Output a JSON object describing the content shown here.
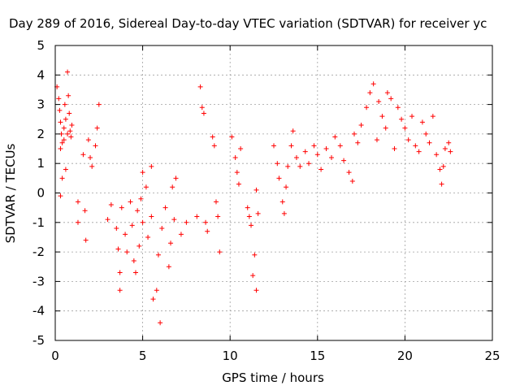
{
  "chart_data": {
    "type": "scatter",
    "title": "Day 289 of 2016, Sidereal Day-to-day VTEC variation (SDTVAR) for receiver yc",
    "xlabel": "GPS time / hours",
    "ylabel": "SDTVAR / TECUs",
    "xlim": [
      0,
      25
    ],
    "ylim": [
      -5,
      5
    ],
    "xticks": [
      "0",
      "5",
      "10",
      "15",
      "20",
      "25"
    ],
    "yticks": [
      "-5",
      "-4",
      "-3",
      "-2",
      "-1",
      "0",
      "1",
      "2",
      "3",
      "4",
      "5"
    ],
    "grid": true,
    "legend": "none",
    "marker": "+",
    "color": "#ff0000",
    "series": [
      {
        "name": "",
        "points": [
          [
            0.1,
            3.6
          ],
          [
            0.2,
            3.2
          ],
          [
            0.25,
            2.8
          ],
          [
            0.3,
            2.4
          ],
          [
            0.35,
            2.0
          ],
          [
            0.4,
            1.7
          ],
          [
            0.5,
            2.2
          ],
          [
            0.55,
            3.0
          ],
          [
            0.6,
            2.5
          ],
          [
            0.7,
            2.0
          ],
          [
            0.75,
            3.3
          ],
          [
            0.8,
            2.7
          ],
          [
            0.85,
            2.1
          ],
          [
            0.9,
            1.9
          ],
          [
            0.95,
            2.3
          ],
          [
            0.3,
            1.5
          ],
          [
            0.5,
            1.8
          ],
          [
            0.7,
            4.1
          ],
          [
            0.4,
            0.5
          ],
          [
            0.3,
            -0.1
          ],
          [
            0.6,
            0.8
          ],
          [
            1.3,
            -0.3
          ],
          [
            1.3,
            -1.0
          ],
          [
            1.6,
            1.3
          ],
          [
            1.7,
            -0.6
          ],
          [
            1.75,
            -1.6
          ],
          [
            1.9,
            1.8
          ],
          [
            2.0,
            1.2
          ],
          [
            2.1,
            0.9
          ],
          [
            2.3,
            1.6
          ],
          [
            2.5,
            3.0
          ],
          [
            2.4,
            2.2
          ],
          [
            3.0,
            -0.9
          ],
          [
            3.2,
            -0.4
          ],
          [
            3.5,
            -1.2
          ],
          [
            3.6,
            -1.9
          ],
          [
            3.7,
            -2.7
          ],
          [
            3.7,
            -3.3
          ],
          [
            3.8,
            -0.5
          ],
          [
            4.0,
            -1.4
          ],
          [
            4.1,
            -2.0
          ],
          [
            4.3,
            -0.3
          ],
          [
            4.4,
            -1.1
          ],
          [
            4.5,
            -2.3
          ],
          [
            4.6,
            -2.7
          ],
          [
            4.7,
            -0.6
          ],
          [
            4.8,
            -1.8
          ],
          [
            4.9,
            -0.2
          ],
          [
            5.0,
            -1.0
          ],
          [
            5.0,
            0.7
          ],
          [
            5.2,
            0.2
          ],
          [
            5.3,
            -1.5
          ],
          [
            5.5,
            0.9
          ],
          [
            5.5,
            -0.8
          ],
          [
            5.6,
            -3.6
          ],
          [
            5.8,
            -3.3
          ],
          [
            5.9,
            -2.1
          ],
          [
            6.0,
            -4.4
          ],
          [
            6.1,
            -1.2
          ],
          [
            6.3,
            -0.5
          ],
          [
            6.5,
            -2.5
          ],
          [
            6.6,
            -1.7
          ],
          [
            6.7,
            0.2
          ],
          [
            6.8,
            -0.9
          ],
          [
            6.9,
            0.5
          ],
          [
            7.2,
            -1.4
          ],
          [
            7.5,
            -1.0
          ],
          [
            8.1,
            -0.8
          ],
          [
            8.3,
            3.6
          ],
          [
            8.4,
            2.9
          ],
          [
            8.5,
            2.7
          ],
          [
            8.6,
            -1.0
          ],
          [
            8.7,
            -1.3
          ],
          [
            9.0,
            1.9
          ],
          [
            9.1,
            1.6
          ],
          [
            9.2,
            -0.3
          ],
          [
            9.3,
            -0.8
          ],
          [
            9.4,
            -2.0
          ],
          [
            10.1,
            1.9
          ],
          [
            10.3,
            1.2
          ],
          [
            10.4,
            0.7
          ],
          [
            10.5,
            0.3
          ],
          [
            10.6,
            1.5
          ],
          [
            11.0,
            -0.5
          ],
          [
            11.1,
            -0.8
          ],
          [
            11.2,
            -1.1
          ],
          [
            11.3,
            -2.8
          ],
          [
            11.4,
            -2.1
          ],
          [
            11.5,
            -3.3
          ],
          [
            11.5,
            0.1
          ],
          [
            11.6,
            -0.7
          ],
          [
            12.5,
            1.6
          ],
          [
            12.7,
            1.0
          ],
          [
            12.8,
            0.5
          ],
          [
            13.0,
            -0.3
          ],
          [
            13.1,
            -0.7
          ],
          [
            13.2,
            0.2
          ],
          [
            13.3,
            0.9
          ],
          [
            13.5,
            1.6
          ],
          [
            13.6,
            2.1
          ],
          [
            13.8,
            1.2
          ],
          [
            14.0,
            0.9
          ],
          [
            14.3,
            1.4
          ],
          [
            14.5,
            1.0
          ],
          [
            14.8,
            1.6
          ],
          [
            15.0,
            1.3
          ],
          [
            15.2,
            0.8
          ],
          [
            15.5,
            1.5
          ],
          [
            15.8,
            1.2
          ],
          [
            16.0,
            1.9
          ],
          [
            16.3,
            1.6
          ],
          [
            16.5,
            1.1
          ],
          [
            16.8,
            0.7
          ],
          [
            17.0,
            0.4
          ],
          [
            17.1,
            2.0
          ],
          [
            17.3,
            1.7
          ],
          [
            17.5,
            2.3
          ],
          [
            17.8,
            2.9
          ],
          [
            18.0,
            3.4
          ],
          [
            18.2,
            3.7
          ],
          [
            18.4,
            1.8
          ],
          [
            18.5,
            3.1
          ],
          [
            18.7,
            2.6
          ],
          [
            18.9,
            2.2
          ],
          [
            19.0,
            3.4
          ],
          [
            19.2,
            3.2
          ],
          [
            19.4,
            1.5
          ],
          [
            19.6,
            2.9
          ],
          [
            19.8,
            2.5
          ],
          [
            20.0,
            2.2
          ],
          [
            20.2,
            1.8
          ],
          [
            20.4,
            2.6
          ],
          [
            20.6,
            1.6
          ],
          [
            20.8,
            1.4
          ],
          [
            21.0,
            2.4
          ],
          [
            21.2,
            2.0
          ],
          [
            21.4,
            1.7
          ],
          [
            21.6,
            2.6
          ],
          [
            21.8,
            1.3
          ],
          [
            22.0,
            0.8
          ],
          [
            22.1,
            0.3
          ],
          [
            22.2,
            0.9
          ],
          [
            22.3,
            1.5
          ],
          [
            22.5,
            1.7
          ],
          [
            22.6,
            1.4
          ]
        ]
      }
    ]
  }
}
